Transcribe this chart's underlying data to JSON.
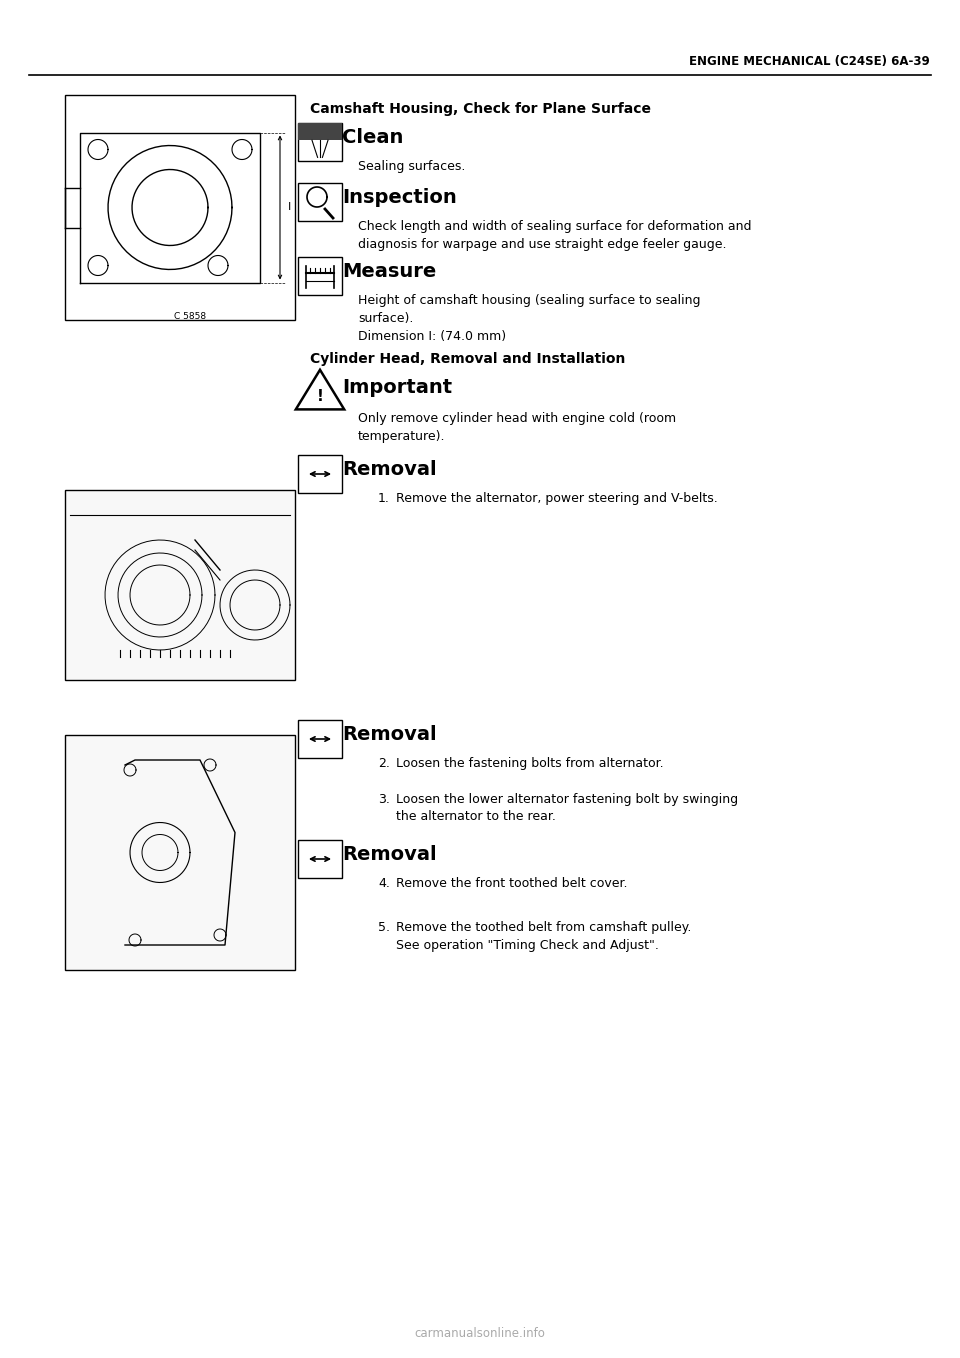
{
  "page_header_right": "ENGINE MECHANICAL (C24SE) 6A-39",
  "bg_color": "#ffffff",
  "section1_title": "Camshaft Housing, Check for Plane Surface",
  "section1_heading1": "Clean",
  "section1_body1": "Sealing surfaces.",
  "section1_heading2": "Inspection",
  "section1_body2": "Check length and width of sealing surface for deformation and\ndiagnosis for warpage and use straight edge feeler gauge.",
  "section1_heading3": "Measure",
  "section1_body3": "Height of camshaft housing (sealing surface to sealing\nsurface).\nDimension I: (74.0 mm)",
  "section2_title": "Cylinder Head, Removal and Installation",
  "section2_heading1": "Important",
  "section2_body1": "Only remove cylinder head with engine cold (room\ntemperature).",
  "section2_heading2": "Removal",
  "section2_body2_items": [
    "Remove the alternator, power steering and V-belts."
  ],
  "section2_heading3": "Removal",
  "section2_body3_items": [
    "Loosen the fastening bolts from alternator.",
    "Loosen the lower alternator fastening bolt by swinging\nthe alternator to the rear."
  ],
  "section2_heading4": "Removal",
  "section2_body4_items": [
    "Remove the front toothed belt cover.",
    "Remove the toothed belt from camshaft pulley.\nSee operation \"Timing Check and Adjust\"."
  ],
  "footer_text": "carmanualsonline.info"
}
